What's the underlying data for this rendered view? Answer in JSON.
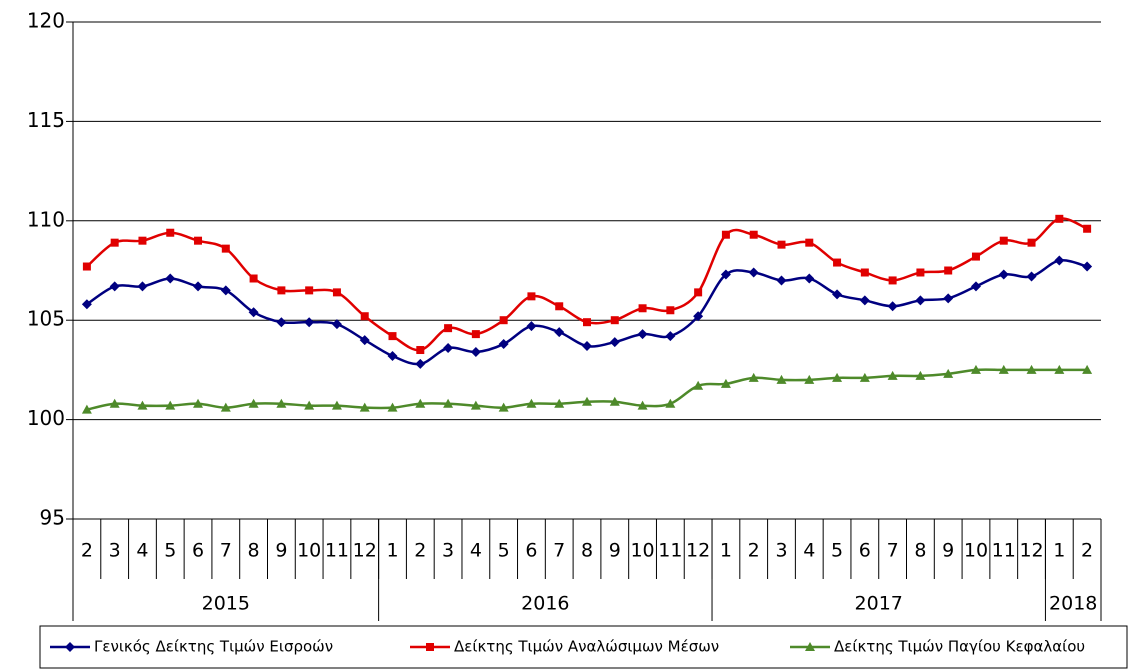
{
  "chart_data": {
    "type": "line",
    "categories": [
      "2",
      "3",
      "4",
      "5",
      "6",
      "7",
      "8",
      "9",
      "10",
      "11",
      "12",
      "1",
      "2",
      "3",
      "4",
      "5",
      "6",
      "7",
      "8",
      "9",
      "10",
      "11",
      "12",
      "1",
      "2",
      "3",
      "4",
      "5",
      "6",
      "7",
      "8",
      "9",
      "10",
      "11",
      "12",
      "1",
      "2"
    ],
    "category_groups": [
      {
        "label": "2015",
        "size": 11
      },
      {
        "label": "2016",
        "size": 12
      },
      {
        "label": "2017",
        "size": 12
      },
      {
        "label": "2018",
        "size": 2
      }
    ],
    "ylim": [
      95,
      120
    ],
    "yticks": [
      95,
      100,
      105,
      110,
      115,
      120
    ],
    "grid": true,
    "series": [
      {
        "name": "Γενικός Δείκτης Τιμών Εισροών",
        "color": "#000080",
        "marker": "diamond",
        "values": [
          105.8,
          106.7,
          106.7,
          107.1,
          106.7,
          106.5,
          105.4,
          104.9,
          104.9,
          104.8,
          104.0,
          103.2,
          102.8,
          103.6,
          103.4,
          103.8,
          104.7,
          104.4,
          103.7,
          103.9,
          104.3,
          104.2,
          105.2,
          107.3,
          107.4,
          107.0,
          107.1,
          106.3,
          106.0,
          105.7,
          106.0,
          106.1,
          106.7,
          107.3,
          107.2,
          108.0,
          107.7
        ]
      },
      {
        "name": "Δείκτης Τιμών Αναλώσιμων Μέσων",
        "color": "#e00000",
        "marker": "square",
        "values": [
          107.7,
          108.9,
          109.0,
          109.4,
          109.0,
          108.6,
          107.1,
          106.5,
          106.5,
          106.4,
          105.2,
          104.2,
          103.5,
          104.6,
          104.3,
          105.0,
          106.2,
          105.7,
          104.9,
          105.0,
          105.6,
          105.5,
          106.4,
          109.3,
          109.3,
          108.8,
          108.9,
          107.9,
          107.4,
          107.0,
          107.4,
          107.5,
          108.2,
          109.0,
          108.9,
          110.1,
          109.6
        ]
      },
      {
        "name": "Δείκτης Τιμών Παγίου Κεφαλαίου",
        "color": "#4e8a2a",
        "marker": "triangle",
        "values": [
          100.5,
          100.8,
          100.7,
          100.7,
          100.8,
          100.6,
          100.8,
          100.8,
          100.7,
          100.7,
          100.6,
          100.6,
          100.8,
          100.8,
          100.7,
          100.6,
          100.8,
          100.8,
          100.9,
          100.9,
          100.7,
          100.8,
          101.7,
          101.8,
          102.1,
          102.0,
          102.0,
          102.1,
          102.1,
          102.2,
          102.2,
          102.3,
          102.5,
          102.5,
          102.5,
          102.5,
          102.5
        ]
      }
    ]
  }
}
